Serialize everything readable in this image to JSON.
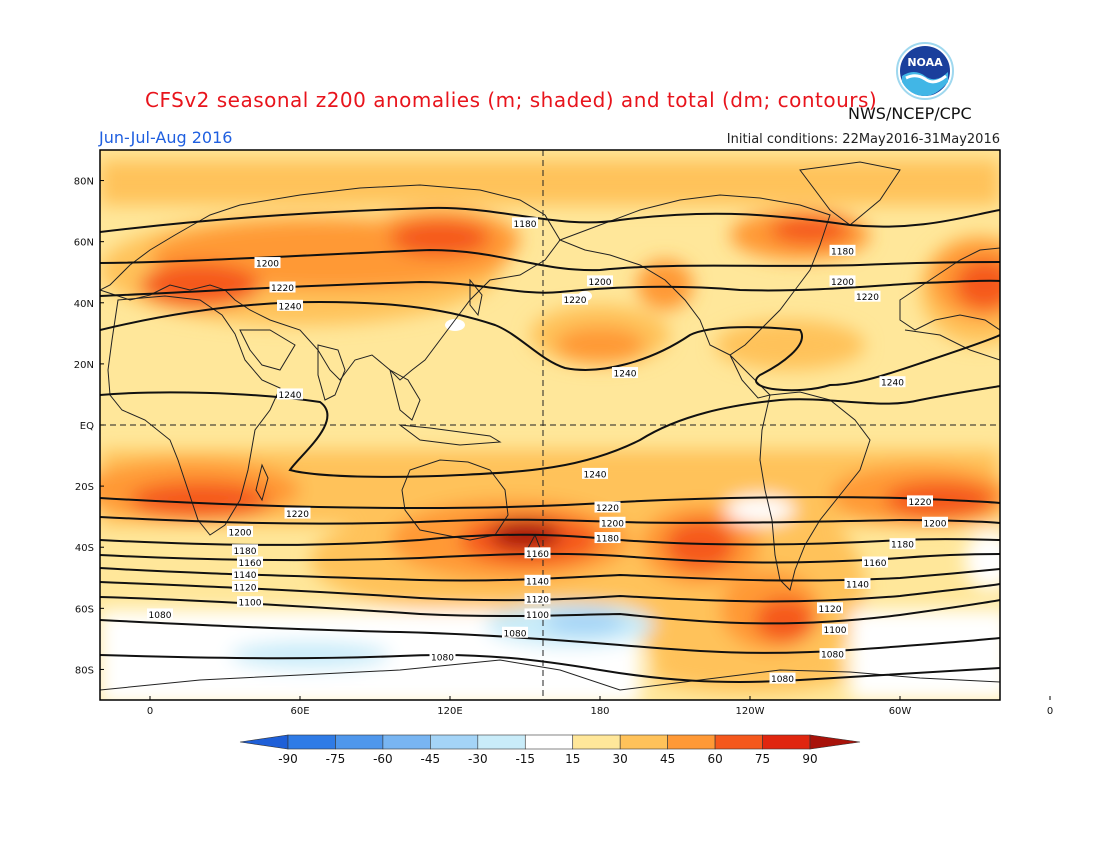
{
  "title": "CFSv2 seasonal z200 anomalies (m; shaded) and total (dm; contours)",
  "agency": "NWS/NCEP/CPC",
  "period": "Jun-Jul-Aug 2016",
  "initial_conditions": "Initial conditions: 22May2016-31May2016",
  "logo_text": "NOAA",
  "chart_data": {
    "type": "heatmap",
    "lat_ticks": [
      "80N",
      "60N",
      "40N",
      "20N",
      "EQ",
      "20S",
      "40S",
      "60S",
      "80S"
    ],
    "lon_ticks": [
      "0",
      "60E",
      "120E",
      "180",
      "120W",
      "60W",
      "0"
    ],
    "colorbar": {
      "labels": [
        "-90",
        "-75",
        "-60",
        "-45",
        "-30",
        "-15",
        "15",
        "30",
        "45",
        "60",
        "75",
        "90"
      ],
      "colors": [
        "#1e5fd8",
        "#2f7be6",
        "#4f97ec",
        "#78b5f2",
        "#a4d4f7",
        "#c9ecf9",
        "#ffffff",
        "#ffe79a",
        "#ffc25a",
        "#ff9936",
        "#f5581c",
        "#e0260f",
        "#a8120a"
      ]
    },
    "contour_labels": [
      {
        "value": "1180",
        "lon": 150,
        "lat": 66
      },
      {
        "value": "1180",
        "lon": 277,
        "lat": 57
      },
      {
        "value": "1200",
        "lon": 47,
        "lat": 53
      },
      {
        "value": "1200",
        "lon": 180,
        "lat": 47
      },
      {
        "value": "1200",
        "lon": 277,
        "lat": 47
      },
      {
        "value": "1220",
        "lon": 53,
        "lat": 45
      },
      {
        "value": "1220",
        "lon": 170,
        "lat": 41
      },
      {
        "value": "1220",
        "lon": 287,
        "lat": 42
      },
      {
        "value": "1240",
        "lon": 56,
        "lat": 39
      },
      {
        "value": "1240",
        "lon": 190,
        "lat": 17
      },
      {
        "value": "1240",
        "lon": 297,
        "lat": 14
      },
      {
        "value": "1240",
        "lon": 56,
        "lat": 10
      },
      {
        "value": "1240",
        "lon": 178,
        "lat": -16
      },
      {
        "value": "1220",
        "lon": 183,
        "lat": -27
      },
      {
        "value": "1220",
        "lon": 59,
        "lat": -29
      },
      {
        "value": "1220",
        "lon": 308,
        "lat": -25
      },
      {
        "value": "1200",
        "lon": 185,
        "lat": -32
      },
      {
        "value": "1200",
        "lon": 36,
        "lat": -35
      },
      {
        "value": "1200",
        "lon": 314,
        "lat": -32
      },
      {
        "value": "1180",
        "lon": 183,
        "lat": -37
      },
      {
        "value": "1180",
        "lon": 38,
        "lat": -41
      },
      {
        "value": "1180",
        "lon": 301,
        "lat": -39
      },
      {
        "value": "1160",
        "lon": 155,
        "lat": -42
      },
      {
        "value": "1160",
        "lon": 40,
        "lat": -45
      },
      {
        "value": "1160",
        "lon": 290,
        "lat": -45
      },
      {
        "value": "1140",
        "lon": 155,
        "lat": -51
      },
      {
        "value": "1140",
        "lon": 38,
        "lat": -49
      },
      {
        "value": "1140",
        "lon": 283,
        "lat": -52
      },
      {
        "value": "1120",
        "lon": 155,
        "lat": -57
      },
      {
        "value": "1120",
        "lon": 38,
        "lat": -53
      },
      {
        "value": "1120",
        "lon": 272,
        "lat": -60
      },
      {
        "value": "1100",
        "lon": 155,
        "lat": -62
      },
      {
        "value": "1100",
        "lon": 40,
        "lat": -58
      },
      {
        "value": "1100",
        "lon": 274,
        "lat": -67
      },
      {
        "value": "1080",
        "lon": 4,
        "lat": -62
      },
      {
        "value": "1080",
        "lon": 146,
        "lat": -68
      },
      {
        "value": "1080",
        "lon": 117,
        "lat": -76
      },
      {
        "value": "1080",
        "lon": 273,
        "lat": -75
      },
      {
        "value": "1080",
        "lon": 253,
        "lat": -83
      }
    ]
  }
}
